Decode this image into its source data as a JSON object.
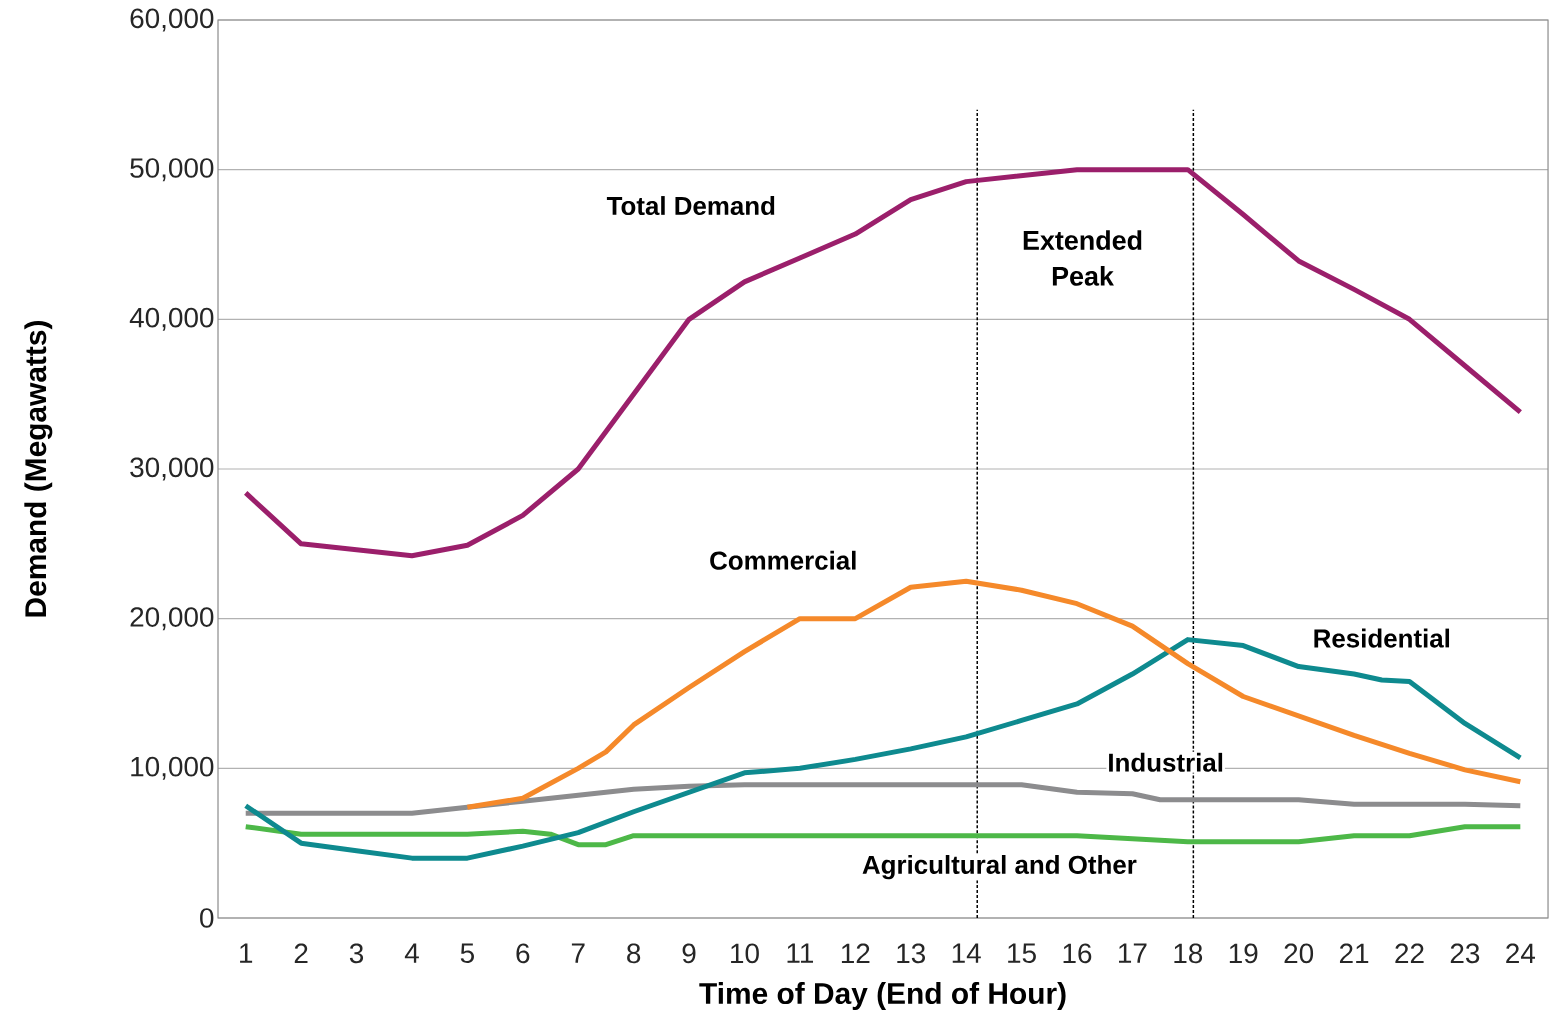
{
  "chart_data": {
    "type": "line",
    "xlabel": "Time of Day (End of Hour)",
    "ylabel": "Demand (Megawatts)",
    "xlim": [
      0.5,
      24.5
    ],
    "ylim": [
      0,
      60000
    ],
    "xticks": [
      1,
      2,
      3,
      4,
      5,
      6,
      7,
      8,
      9,
      10,
      11,
      12,
      13,
      14,
      15,
      16,
      17,
      18,
      19,
      20,
      21,
      22,
      23,
      24
    ],
    "yticks": [
      {
        "value": 0,
        "label": "0"
      },
      {
        "value": 10000,
        "label": "10,000"
      },
      {
        "value": 20000,
        "label": "20,000"
      },
      {
        "value": 30000,
        "label": "30,000"
      },
      {
        "value": 40000,
        "label": "40,000"
      },
      {
        "value": 50000,
        "label": "50,000"
      },
      {
        "value": 60000,
        "label": "60,000"
      }
    ],
    "grid": "y",
    "series": [
      {
        "name": "Total Demand",
        "color": "#9b1f6b",
        "x": [
          1,
          2,
          3,
          4,
          5,
          6,
          7,
          8,
          9,
          10,
          11,
          12,
          13,
          14,
          15,
          16,
          17,
          18,
          19,
          20,
          21,
          22,
          23,
          24
        ],
        "values": [
          28400,
          25000,
          24600,
          24200,
          24900,
          26900,
          30000,
          35000,
          40000,
          42500,
          44100,
          45700,
          48000,
          49200,
          49600,
          50000,
          50000,
          50000,
          47000,
          43900,
          42000,
          40000,
          36900,
          33800
        ]
      },
      {
        "name": "Commercial",
        "color": "#f5892a",
        "x": [
          5,
          6,
          7,
          7.5,
          8,
          9,
          10,
          11,
          12,
          13,
          14,
          15,
          16,
          17,
          18,
          19,
          20,
          21,
          22,
          23,
          24
        ],
        "values": [
          7400,
          8000,
          10000,
          11100,
          12900,
          15400,
          17800,
          20000,
          20000,
          22100,
          22500,
          21900,
          21000,
          19500,
          17000,
          14800,
          13500,
          12200,
          11000,
          9900,
          9100
        ]
      },
      {
        "name": "Residential",
        "color": "#0e8a8f",
        "x": [
          1,
          2,
          3,
          4,
          5,
          6,
          7,
          8,
          9,
          10,
          11,
          12,
          13,
          14,
          15,
          16,
          17,
          18,
          19,
          20,
          21,
          21.5,
          22,
          23,
          24
        ],
        "values": [
          7500,
          5000,
          4500,
          4000,
          4000,
          4800,
          5700,
          7100,
          8400,
          9700,
          10000,
          10600,
          11300,
          12100,
          13200,
          14300,
          16300,
          18600,
          18200,
          16800,
          16300,
          15900,
          15800,
          13000,
          10700
        ]
      },
      {
        "name": "Industrial",
        "color": "#8c8c8e",
        "x": [
          1,
          2,
          3,
          4,
          5,
          6,
          7,
          8,
          9,
          10,
          11,
          12,
          13,
          14,
          15,
          16,
          17,
          17.5,
          18,
          19,
          20,
          21,
          22,
          23,
          24
        ],
        "values": [
          7000,
          7000,
          7000,
          7000,
          7400,
          7800,
          8200,
          8600,
          8800,
          8900,
          8900,
          8900,
          8900,
          8900,
          8900,
          8400,
          8300,
          7900,
          7900,
          7900,
          7900,
          7600,
          7600,
          7600,
          7500
        ]
      },
      {
        "name": "Agricultural and Other",
        "color": "#4db848",
        "x": [
          1,
          2,
          3,
          4,
          5,
          6,
          6.5,
          7,
          7.5,
          8,
          9,
          10,
          11,
          12,
          13,
          14,
          15,
          16,
          17,
          18,
          19,
          20,
          21,
          22,
          23,
          24
        ],
        "values": [
          6100,
          5600,
          5600,
          5600,
          5600,
          5800,
          5600,
          4900,
          4900,
          5500,
          5500,
          5500,
          5500,
          5500,
          5500,
          5500,
          5500,
          5500,
          5300,
          5100,
          5100,
          5100,
          5500,
          5500,
          6100,
          6100
        ]
      }
    ],
    "ref_lines": [
      {
        "axis": "x",
        "value": 14.2,
        "line_style": "dashed"
      },
      {
        "axis": "x",
        "value": 18.1,
        "line_style": "dashed"
      }
    ],
    "annotations": [
      "Extended Peak"
    ]
  }
}
